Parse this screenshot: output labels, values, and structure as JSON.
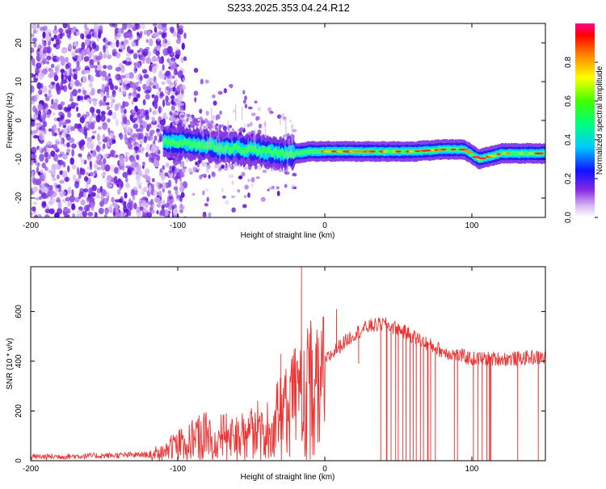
{
  "title": "S233.2025.353.04.24.R12",
  "colors": {
    "snr_line": "#ee3333",
    "frame": "#000000",
    "spectrogram_low": "#c9a8f0",
    "spectrogram_mid": "#6a1ae0",
    "spectrogram_ridge": "#ff2a2a"
  },
  "chart_data": [
    {
      "type": "heatmap",
      "xlabel": "Height of straight line (km)",
      "ylabel": "Frequency (Hz)",
      "xlim": [
        -200,
        150
      ],
      "ylim": [
        -25,
        25
      ],
      "xticks": [
        -200,
        -100,
        0,
        100
      ],
      "yticks": [
        20,
        10,
        0,
        -10,
        -20
      ],
      "grid": false,
      "colorbar": {
        "label": "Normalized spectral amplitude",
        "range": [
          0,
          1
        ],
        "ticks": [
          "0.0",
          "0.2",
          "0.4",
          "0.6",
          "0.8"
        ],
        "colormap": "rainbow (white-violet-blue-cyan-green-yellow-red-magenta)"
      },
      "ridge": {
        "description_values_only": true,
        "x": [
          -110,
          -90,
          -70,
          -50,
          -40,
          -30,
          -20,
          -10,
          0,
          10,
          20,
          40,
          60,
          80,
          95,
          105,
          120,
          140,
          150
        ],
        "y": [
          -5.5,
          -6.0,
          -7.0,
          -7.5,
          -8.0,
          -8.5,
          -8.5,
          -8.0,
          -8.0,
          -8.0,
          -8.0,
          -8.0,
          -8.0,
          -7.5,
          -7.5,
          -10.0,
          -8.5,
          -8.5,
          -8.5
        ]
      }
    },
    {
      "type": "line",
      "xlabel": "Height of straight line (km)",
      "ylabel": "SNR (10 * v/v)",
      "xlim": [
        -200,
        150
      ],
      "ylim": [
        0,
        780
      ],
      "xticks": [
        -200,
        -100,
        0,
        100
      ],
      "yticks": [
        0,
        200,
        400,
        600
      ],
      "grid": false,
      "envelope": {
        "x": [
          -200,
          -150,
          -120,
          -110,
          -100,
          -80,
          -60,
          -40,
          -30,
          -20,
          -10,
          0,
          10,
          20,
          30,
          40,
          50,
          60,
          70,
          80,
          90,
          100,
          110,
          120,
          130,
          140,
          150
        ],
        "y": [
          15,
          20,
          25,
          50,
          90,
          130,
          120,
          170,
          220,
          300,
          380,
          400,
          460,
          510,
          540,
          550,
          530,
          500,
          470,
          440,
          425,
          410,
          410,
          410,
          410,
          415,
          415
        ]
      },
      "spikes": [
        {
          "x": -16,
          "y": 780
        },
        {
          "x": -30,
          "y": 430
        },
        {
          "x": 8,
          "y": 610
        },
        {
          "x": 23,
          "y": 390
        }
      ],
      "dropouts_x": [
        38,
        42,
        45,
        48,
        50,
        53,
        55,
        58,
        60,
        62,
        65,
        67,
        70,
        72,
        75,
        88,
        90,
        101,
        104,
        107,
        110,
        112,
        113,
        131,
        145
      ]
    }
  ]
}
